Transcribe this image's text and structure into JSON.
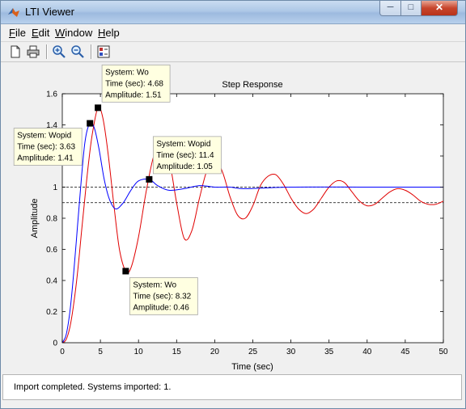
{
  "window": {
    "title": "LTI Viewer"
  },
  "menu": {
    "items": [
      "File",
      "Edit",
      "Window",
      "Help"
    ]
  },
  "toolbar": {
    "icons": [
      "new-figure-icon",
      "print-icon",
      "zoom-in-icon",
      "zoom-out-icon",
      "plot-configurations-icon"
    ]
  },
  "status": {
    "text": "Import completed. Systems imported: 1."
  },
  "colors": {
    "Wopid": "#0000ff",
    "Wo": "#e00000",
    "datatip_bg": "#ffffe1"
  },
  "chart_data": {
    "type": "line",
    "title": "Step Response",
    "xlabel": "Time (sec)",
    "ylabel": "Amplitude",
    "xlim": [
      0,
      50
    ],
    "ylim": [
      0,
      1.6
    ],
    "xticks": [
      "0",
      "5",
      "10",
      "15",
      "20",
      "25",
      "30",
      "35",
      "40",
      "45",
      "50"
    ],
    "yticks": [
      "0",
      "0.2",
      "0.4",
      "0.6",
      "0.8",
      "1",
      "1.2",
      "1.4",
      "1.6"
    ],
    "grid": false,
    "reference_lines": [
      1.0,
      0.9
    ],
    "series": [
      {
        "name": "Wopid",
        "x": [
          0,
          0.5,
          1,
          1.5,
          2,
          2.5,
          3,
          3.63,
          4.2,
          4.8,
          5.5,
          6.2,
          7,
          8,
          9,
          10,
          11.4,
          12.5,
          14,
          16,
          18,
          20,
          22,
          24,
          30,
          40,
          50
        ],
        "y": [
          0,
          0.05,
          0.2,
          0.45,
          0.75,
          1.05,
          1.3,
          1.41,
          1.38,
          1.25,
          1.05,
          0.92,
          0.86,
          0.9,
          0.98,
          1.04,
          1.05,
          1.01,
          0.98,
          0.99,
          1.01,
          1.0,
          1.0,
          0.99,
          1.0,
          1.0,
          1.0
        ]
      },
      {
        "name": "Wo",
        "x": [
          0,
          0.5,
          1,
          1.5,
          2,
          2.5,
          3,
          3.5,
          4,
          4.68,
          5.3,
          6,
          6.8,
          7.5,
          8.32,
          9,
          10,
          11,
          12,
          13,
          14,
          15,
          16,
          17,
          18,
          19,
          20,
          21,
          22,
          23,
          24,
          25,
          26,
          27,
          28,
          29,
          30,
          31,
          32,
          33,
          34,
          35,
          36,
          37,
          38,
          39,
          40,
          41,
          42,
          43,
          44,
          45,
          46,
          47,
          48,
          49,
          50
        ],
        "y": [
          0,
          0.02,
          0.1,
          0.25,
          0.45,
          0.7,
          0.95,
          1.18,
          1.36,
          1.51,
          1.45,
          1.22,
          0.87,
          0.6,
          0.46,
          0.48,
          0.68,
          0.97,
          1.2,
          1.28,
          1.18,
          0.9,
          0.67,
          0.72,
          0.93,
          1.11,
          1.18,
          1.1,
          0.94,
          0.82,
          0.8,
          0.88,
          1.01,
          1.07,
          1.08,
          1.02,
          0.93,
          0.86,
          0.83,
          0.86,
          0.93,
          1.0,
          1.04,
          1.03,
          0.97,
          0.91,
          0.88,
          0.89,
          0.93,
          0.97,
          0.99,
          0.98,
          0.95,
          0.91,
          0.89,
          0.89,
          0.91
        ]
      }
    ],
    "datatips": [
      {
        "label_system": "System: Wo",
        "label_time": "Time (sec): 4.68",
        "label_amp": "Amplitude: 1.51",
        "x": 4.68,
        "y": 1.51,
        "placement": "above-right"
      },
      {
        "label_system": "System: Wopid",
        "label_time": "Time (sec): 3.63",
        "label_amp": "Amplitude: 1.41",
        "x": 3.63,
        "y": 1.41,
        "placement": "left"
      },
      {
        "label_system": "System: Wopid",
        "label_time": "Time (sec): 11.4",
        "label_amp": "Amplitude: 1.05",
        "x": 11.4,
        "y": 1.05,
        "placement": "above-right"
      },
      {
        "label_system": "System: Wo",
        "label_time": "Time (sec): 8.32",
        "label_amp": "Amplitude: 0.46",
        "x": 8.32,
        "y": 0.46,
        "placement": "below-right"
      }
    ]
  }
}
